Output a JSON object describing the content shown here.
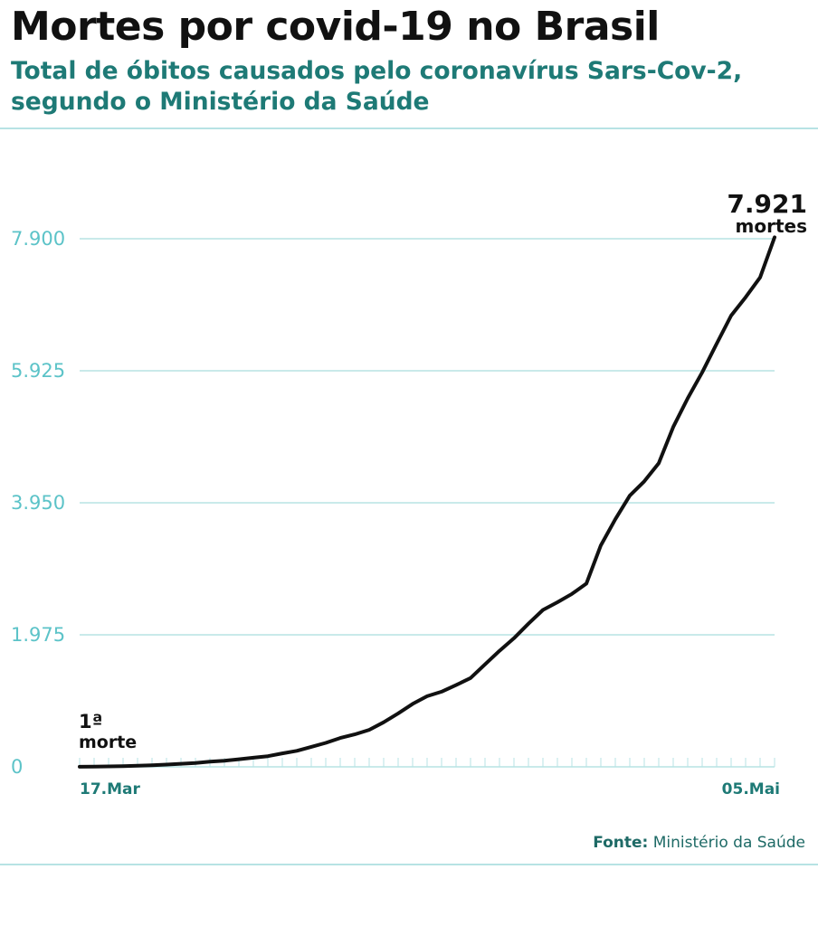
{
  "header": {
    "title": "Mortes por covid-19 no Brasil",
    "subtitle": "Total de óbitos causados pelo coronavírus Sars-Cov-2, segundo o Ministério da Saúde"
  },
  "source": {
    "label": "Fonte:",
    "text": "Ministério da Saúde"
  },
  "colors": {
    "accent": "#1e7a76",
    "grid": "#b7e3e4",
    "tick": "#5cc3c8",
    "line": "#111111"
  },
  "chart_data": {
    "type": "line",
    "title": "Mortes por covid-19 no Brasil",
    "subtitle": "Total de óbitos causados pelo coronavírus Sars-Cov-2, segundo o Ministério da Saúde",
    "xlabel": "",
    "ylabel": "",
    "ylim": [
      0,
      7900
    ],
    "yticks": [
      0,
      1975,
      3950,
      5925,
      7900
    ],
    "ytick_labels": [
      "0",
      "1.975",
      "3.950",
      "5.925",
      "7.900"
    ],
    "xtick_labels": [
      "17.Mar",
      "05.Mai"
    ],
    "grid": true,
    "series": [
      {
        "values": [
          1,
          4,
          7,
          11,
          18,
          25,
          34,
          46,
          57,
          77,
          92,
          114,
          136,
          159,
          201,
          240,
          299,
          359,
          432,
          486,
          553,
          667,
          800,
          941,
          1056,
          1124,
          1223,
          1328,
          1532,
          1736,
          1924,
          2141,
          2347,
          2462,
          2587,
          2741,
          3313,
          3704,
          4057,
          4271,
          4543,
          5083,
          5513,
          5901,
          6329,
          6750,
          7025,
          7321,
          7921
        ]
      }
    ],
    "annotations": [
      {
        "point": "first",
        "value_text": "1ª",
        "label": "morte"
      },
      {
        "point": "last",
        "value_text": "7.921",
        "label": "mortes"
      }
    ]
  }
}
